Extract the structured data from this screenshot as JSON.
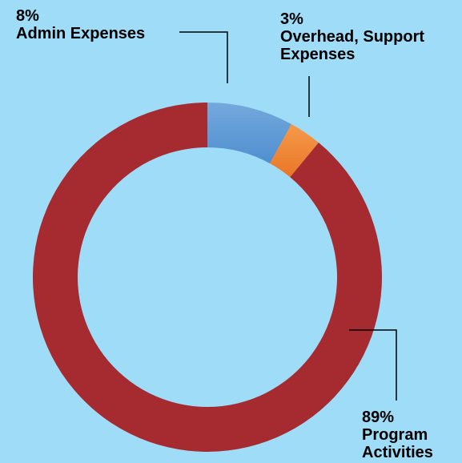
{
  "chart_data": {
    "type": "pie",
    "style": "donut",
    "background": "#9fdcf7",
    "slices": [
      {
        "label_lines": [
          "Admin Expenses"
        ],
        "percent_text": "8%",
        "value": 8,
        "color": "#5b9bd5"
      },
      {
        "label_lines": [
          "Overhead, Support",
          "Expenses"
        ],
        "percent_text": "3%",
        "value": 3,
        "color": "#ed7d31"
      },
      {
        "label_lines": [
          "Program",
          "Activities"
        ],
        "percent_text": "89%",
        "value": 89,
        "color": "#a62b31"
      }
    ],
    "legend": "none",
    "data_labels": "outside with leader lines"
  }
}
